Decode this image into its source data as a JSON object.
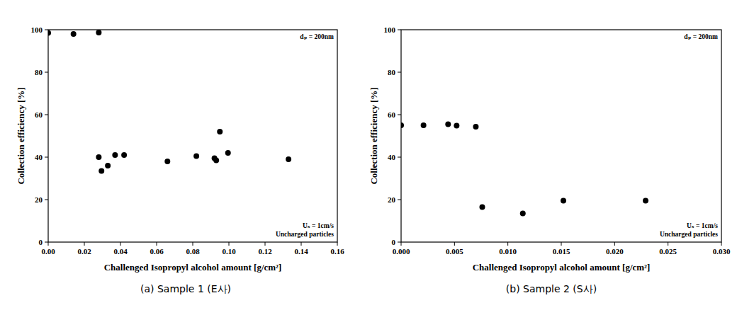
{
  "chart_data": [
    {
      "type": "scatter",
      "caption": "(a) Sample 1 (E사)",
      "x_label": "Challenged Isopropyl alcohol amount [g/cm²]",
      "y_label": "Collection efficiency [%]",
      "annotations": [
        "dₚ = 200nm",
        "Uₛ = 1cm/s",
        "Uncharged particles"
      ],
      "x": [
        0.0,
        0.014,
        0.028,
        0.028,
        0.0295,
        0.033,
        0.037,
        0.042,
        0.066,
        0.082,
        0.092,
        0.093,
        0.095,
        0.0995,
        0.133
      ],
      "values": [
        98.5,
        98,
        98.7,
        40,
        33.5,
        36,
        41,
        41,
        38,
        40.5,
        39.5,
        38.5,
        52,
        42,
        39
      ],
      "color": "#000000",
      "marker": "circle",
      "xlim": [
        0,
        0.16
      ],
      "ylim": [
        0,
        100
      ],
      "xticks": [
        {
          "value": 0,
          "label": "0.00"
        },
        {
          "value": 0.02,
          "label": "0.02"
        },
        {
          "value": 0.04,
          "label": "0.04"
        },
        {
          "value": 0.06,
          "label": "0.06"
        },
        {
          "value": 0.08,
          "label": "0.08"
        },
        {
          "value": 0.1,
          "label": "0.10"
        },
        {
          "value": 0.12,
          "label": "0.12"
        },
        {
          "value": 0.14,
          "label": "0.14"
        },
        {
          "value": 0.16,
          "label": "0.16"
        }
      ],
      "yticks": [
        0,
        20,
        40,
        60,
        80,
        100
      ],
      "grid": false
    },
    {
      "type": "scatter",
      "caption": "(b) Sample 2 (S사)",
      "x_label": "Challenged Isopropyl alcohol amount [g/cm²]",
      "y_label": "Collection efficiency [%]",
      "annotations": [
        "dₚ = 200nm",
        "Uₛ = 1cm/s",
        "Uncharged particles"
      ],
      "x": [
        0.0,
        0.0021,
        0.0044,
        0.0052,
        0.007,
        0.0076,
        0.0114,
        0.0152,
        0.0229
      ],
      "values": [
        55,
        55,
        55.5,
        54.8,
        54.3,
        16.5,
        13.5,
        19.5,
        19.5
      ],
      "color": "#000000",
      "marker": "circle",
      "xlim": [
        0,
        0.03
      ],
      "ylim": [
        0,
        100
      ],
      "xticks": [
        {
          "value": 0,
          "label": "0.000"
        },
        {
          "value": 0.005,
          "label": "0.005"
        },
        {
          "value": 0.01,
          "label": "0.010"
        },
        {
          "value": 0.015,
          "label": "0.015"
        },
        {
          "value": 0.02,
          "label": "0.020"
        },
        {
          "value": 0.025,
          "label": "0.025"
        },
        {
          "value": 0.03,
          "label": "0.030"
        }
      ],
      "yticks": [
        0,
        20,
        40,
        60,
        80,
        100
      ],
      "grid": false
    }
  ]
}
